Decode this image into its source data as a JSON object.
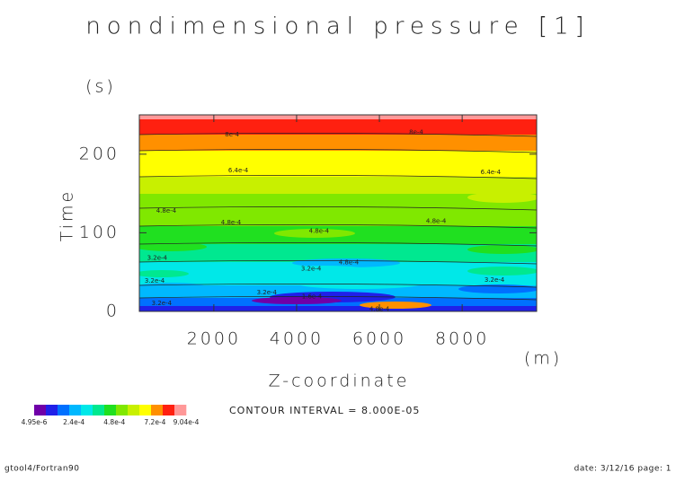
{
  "chart_data": {
    "type": "contour",
    "title": "nondimensional pressure [1]",
    "x_label": "Z-coordinate",
    "x_unit": "(m)",
    "y_label": "Time",
    "y_unit": "(s)",
    "xlim": [
      200,
      9800
    ],
    "ylim": [
      0,
      250
    ],
    "xticks": [
      2000,
      4000,
      6000,
      8000
    ],
    "yticks": [
      0,
      100,
      200
    ],
    "contour_labels": [
      {
        "text": "8e-4",
        "x": 2440,
        "y": 225
      },
      {
        "text": "8e-4",
        "x": 6890,
        "y": 228
      },
      {
        "text": "6.4e-4",
        "x": 2590,
        "y": 179
      },
      {
        "text": "6.4e-4",
        "x": 8690,
        "y": 177
      },
      {
        "text": "4.8e-4",
        "x": 850,
        "y": 128
      },
      {
        "text": "4.8e-4",
        "x": 2415,
        "y": 113
      },
      {
        "text": "4.8e-4",
        "x": 7370,
        "y": 115
      },
      {
        "text": "4.8e-4",
        "x": 4540,
        "y": 102
      },
      {
        "text": "3.2e-4",
        "x": 630,
        "y": 68
      },
      {
        "text": "4.8e-4",
        "x": 5260,
        "y": 62
      },
      {
        "text": "3.2e-4",
        "x": 4350,
        "y": 54
      },
      {
        "text": "3.2e-4",
        "x": 570,
        "y": 39
      },
      {
        "text": "3.2e-4",
        "x": 8780,
        "y": 40
      },
      {
        "text": "3.2e-4",
        "x": 3280,
        "y": 24
      },
      {
        "text": "1.6e-4",
        "x": 4370,
        "y": 19
      },
      {
        "text": "4.8e-4",
        "x": 6000,
        "y": 3
      },
      {
        "text": "3.2e-4",
        "x": 740,
        "y": 10
      }
    ],
    "colorbar": {
      "range": [
        4.95e-06,
        0.000904
      ],
      "colors": [
        "#7000a8",
        "#2020e8",
        "#0070ff",
        "#00b8ff",
        "#00e8e8",
        "#00e890",
        "#20e020",
        "#80e800",
        "#c8f000",
        "#ffff00",
        "#ff9000",
        "#ff2010",
        "#ff9898"
      ],
      "ticks": [
        {
          "value": 4.95e-06,
          "label": "4.95e-6"
        },
        {
          "value": 0.00024,
          "label": "2.4e-4"
        },
        {
          "value": 0.00048,
          "label": "4.8e-4"
        },
        {
          "value": 0.00072,
          "label": "7.2e-4"
        },
        {
          "value": 0.000904,
          "label": "9.04e-4"
        }
      ]
    },
    "contour_interval": "CONTOUR INTERVAL = 8.000E-05",
    "footer_left": "gtool4/Fortran90",
    "footer_right": "date: 3/12/16 page: 1"
  }
}
